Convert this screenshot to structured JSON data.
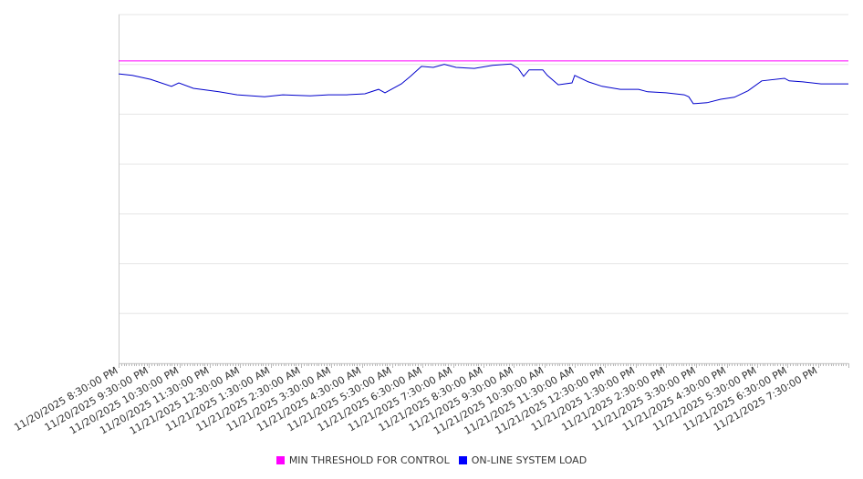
{
  "chart_data": {
    "type": "line",
    "title": "",
    "xlabel": "",
    "ylabel": "",
    "x_unit": "hours since 11/20/2025 8:30:00 PM",
    "xlim": [
      0,
      24
    ],
    "ylim": [
      0,
      700
    ],
    "y_grid_step": 100,
    "grid": true,
    "y_tick_labels_shown": false,
    "legend_position": "bottom-center",
    "x_tick_labels": [
      "11/20/2025 8:30:00 PM",
      "11/20/2025 9:30:00 PM",
      "11/20/2025 10:30:00 PM",
      "11/20/2025 11:30:00 PM",
      "11/21/2025 12:30:00 AM",
      "11/21/2025 1:30:00 AM",
      "11/21/2025 2:30:00 AM",
      "11/21/2025 3:30:00 AM",
      "11/21/2025 4:30:00 AM",
      "11/21/2025 5:30:00 AM",
      "11/21/2025 6:30:00 AM",
      "11/21/2025 7:30:00 AM",
      "11/21/2025 8:30:00 AM",
      "11/21/2025 9:30:00 AM",
      "11/21/2025 10:30:00 AM",
      "11/21/2025 11:30:00 AM",
      "11/21/2025 12:30:00 PM",
      "11/21/2025 1:30:00 PM",
      "11/21/2025 2:30:00 PM",
      "11/21/2025 3:30:00 PM",
      "11/21/2025 4:30:00 PM",
      "11/21/2025 5:30:00 PM",
      "11/21/2025 6:30:00 PM",
      "11/21/2025 7:30:00 PM"
    ],
    "series": [
      {
        "name": "MIN THRESHOLD FOR CONTROL",
        "color": "#ff00ff",
        "points": [
          [
            0,
            607
          ],
          [
            24,
            607
          ]
        ]
      },
      {
        "name": "ON-LINE SYSTEM LOAD",
        "color": "#0000cc",
        "points": [
          [
            0,
            581
          ],
          [
            0.45,
            578
          ],
          [
            1.05,
            570
          ],
          [
            1.74,
            556
          ],
          [
            1.98,
            563
          ],
          [
            2.46,
            552
          ],
          [
            3.3,
            545
          ],
          [
            3.9,
            539
          ],
          [
            4.8,
            535
          ],
          [
            5.4,
            539
          ],
          [
            6.3,
            537
          ],
          [
            6.9,
            539
          ],
          [
            7.5,
            539
          ],
          [
            8.1,
            541
          ],
          [
            8.55,
            550
          ],
          [
            8.76,
            543
          ],
          [
            9.3,
            561
          ],
          [
            9.6,
            576
          ],
          [
            9.96,
            596
          ],
          [
            10.35,
            594
          ],
          [
            10.71,
            600
          ],
          [
            11.1,
            594
          ],
          [
            11.7,
            592
          ],
          [
            12.3,
            598
          ],
          [
            12.9,
            601
          ],
          [
            13.14,
            592
          ],
          [
            13.32,
            576
          ],
          [
            13.5,
            589
          ],
          [
            13.95,
            589
          ],
          [
            14.1,
            578
          ],
          [
            14.46,
            559
          ],
          [
            14.91,
            563
          ],
          [
            15,
            578
          ],
          [
            15.45,
            565
          ],
          [
            15.9,
            556
          ],
          [
            16.5,
            550
          ],
          [
            17.1,
            550
          ],
          [
            17.4,
            545
          ],
          [
            18,
            543
          ],
          [
            18.6,
            539
          ],
          [
            18.75,
            535
          ],
          [
            18.9,
            521
          ],
          [
            19.35,
            523
          ],
          [
            19.8,
            530
          ],
          [
            20.25,
            534
          ],
          [
            20.7,
            547
          ],
          [
            21.15,
            567
          ],
          [
            21.9,
            572
          ],
          [
            22.05,
            567
          ],
          [
            22.5,
            565
          ],
          [
            23.1,
            561
          ],
          [
            24,
            561
          ]
        ]
      }
    ]
  }
}
